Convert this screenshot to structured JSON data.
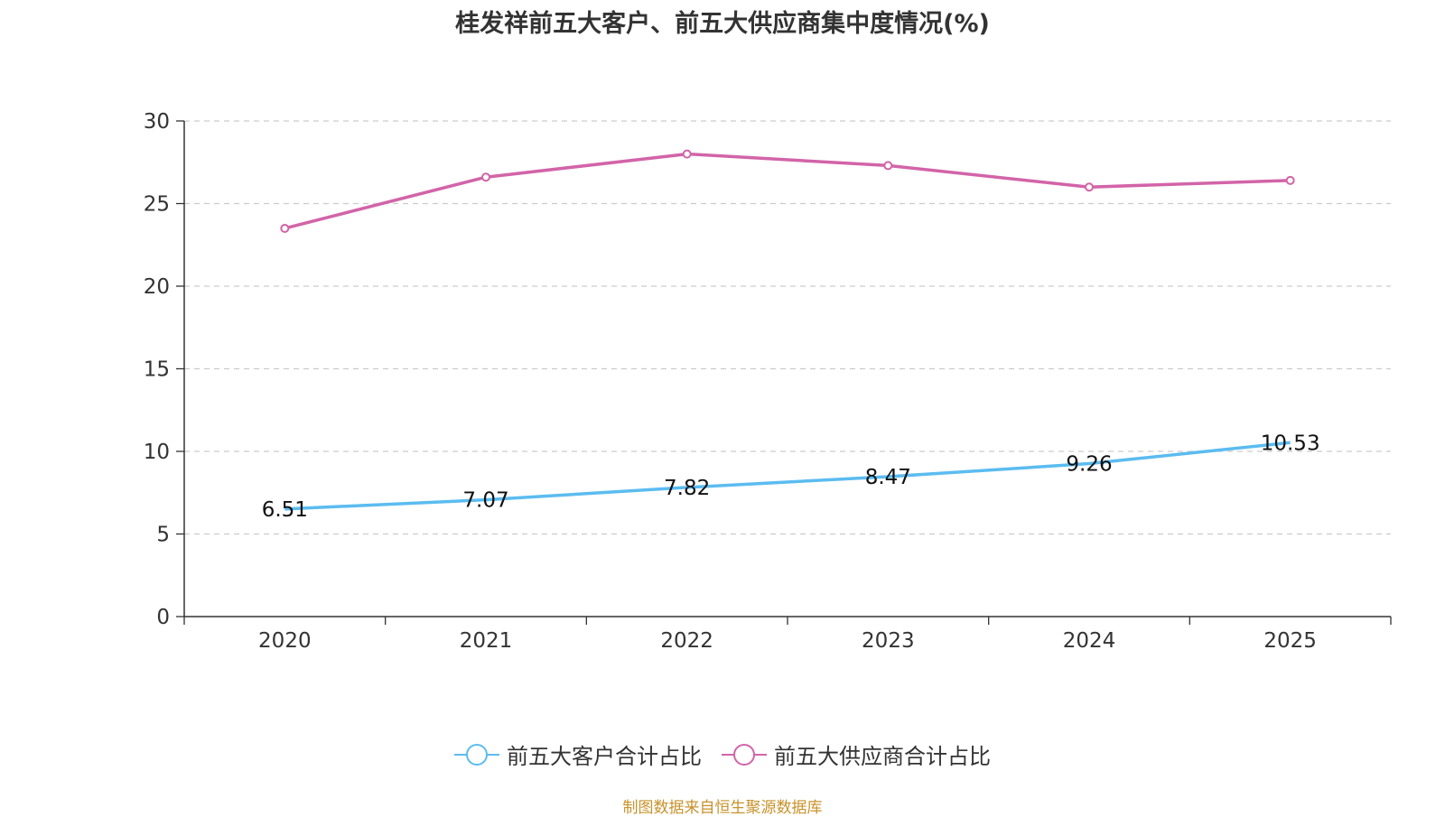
{
  "chart_data": {
    "type": "line",
    "title": "桂发祥前五大客户、前五大供应商集中度情况(%)",
    "categories": [
      "2020",
      "2021",
      "2022",
      "2023",
      "2024",
      "2025"
    ],
    "ylim": [
      0,
      30
    ],
    "yticks": [
      0,
      5,
      10,
      15,
      20,
      25,
      30
    ],
    "grid": true,
    "legend_position": "bottom",
    "series": [
      {
        "name": "前五大客户合计占比",
        "color": "#5bbcf0",
        "values": [
          6.51,
          7.07,
          7.82,
          8.47,
          9.26,
          10.53
        ],
        "labels": [
          "6.51",
          "7.07",
          "7.82",
          "8.47",
          "9.26",
          "10.53"
        ],
        "show_labels": true
      },
      {
        "name": "前五大供应商合计占比",
        "color": "#d264a8",
        "values": [
          23.5,
          26.6,
          28.0,
          27.3,
          26.0,
          26.4
        ],
        "show_labels": false
      }
    ]
  },
  "source_text": "制图数据来自恒生聚源数据库",
  "source_color": "#c8922b"
}
